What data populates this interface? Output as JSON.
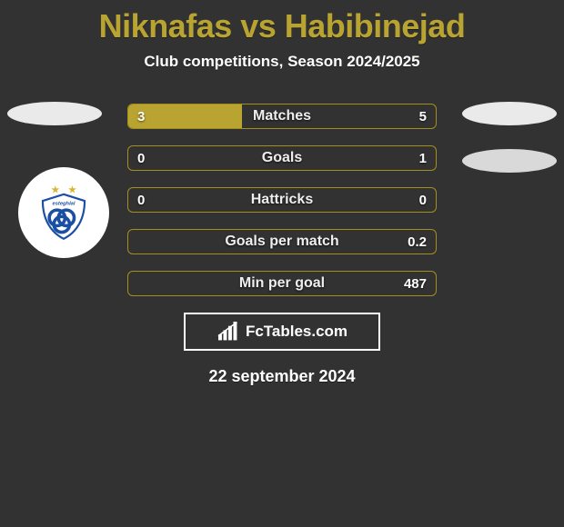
{
  "header": {
    "title": "Niknafas vs Habibinejad",
    "subtitle": "Club competitions, Season 2024/2025"
  },
  "colors": {
    "accent": "#b9a431",
    "background": "#323232",
    "text": "#ffffff",
    "ellipse": "#eaeaea",
    "ellipse_alt": "#d9d9d9"
  },
  "stats": [
    {
      "label": "Matches",
      "left_value": "3",
      "right_value": "5",
      "left_pct": 37,
      "right_pct": 0
    },
    {
      "label": "Goals",
      "left_value": "0",
      "right_value": "1",
      "left_pct": 0,
      "right_pct": 0
    },
    {
      "label": "Hattricks",
      "left_value": "0",
      "right_value": "0",
      "left_pct": 0,
      "right_pct": 0
    },
    {
      "label": "Goals per match",
      "left_value": "",
      "right_value": "0.2",
      "left_pct": 0,
      "right_pct": 0
    },
    {
      "label": "Min per goal",
      "left_value": "",
      "right_value": "487",
      "left_pct": 0,
      "right_pct": 0
    }
  ],
  "brand": {
    "name": "FcTables.com"
  },
  "footer": {
    "date": "22 september 2024"
  }
}
